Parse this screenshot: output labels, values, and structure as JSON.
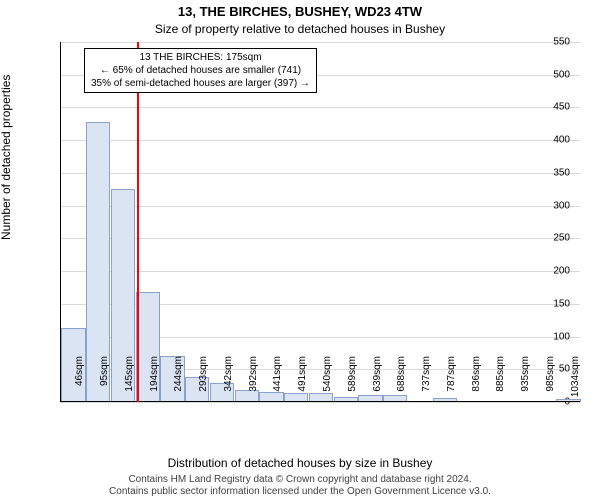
{
  "title_main": "13, THE BIRCHES, BUSHEY, WD23 4TW",
  "title_sub": "Size of property relative to detached houses in Bushey",
  "y_label": "Number of detached properties",
  "x_label": "Distribution of detached houses by size in Bushey",
  "footer_line1": "Contains HM Land Registry data © Crown copyright and database right 2024.",
  "footer_line2": "Contains public sector information licensed under the Open Government Licence v3.0.",
  "chart": {
    "type": "histogram",
    "x_categories": [
      "46sqm",
      "95sqm",
      "145sqm",
      "194sqm",
      "244sqm",
      "293sqm",
      "342sqm",
      "392sqm",
      "441sqm",
      "491sqm",
      "540sqm",
      "589sqm",
      "639sqm",
      "688sqm",
      "737sqm",
      "787sqm",
      "836sqm",
      "885sqm",
      "935sqm",
      "985sqm",
      "1034sqm"
    ],
    "bar_values": [
      110,
      425,
      322,
      165,
      68,
      35,
      26,
      16,
      12,
      10,
      10,
      4,
      8,
      8,
      0,
      3,
      0,
      0,
      0,
      0,
      2
    ],
    "ylim": [
      0,
      550
    ],
    "y_ticks": [
      0,
      50,
      100,
      150,
      200,
      250,
      300,
      350,
      400,
      450,
      500,
      550
    ],
    "bar_fill": "#dbe4f3",
    "bar_border": "#8aa2cc",
    "grid_color": "#d9d9d9",
    "background": "#ffffff",
    "marker": {
      "value_sqm": 175,
      "color": "#ff0000",
      "box_line1": "13 THE BIRCHES: 175sqm",
      "box_line2": "← 65% of detached houses are smaller (741)",
      "box_line3": "35% of semi-detached houses are larger (397) →"
    },
    "font_size_title": 13,
    "font_size_sub": 12,
    "font_size_ticks": 10,
    "font_size_axis_label": 12
  }
}
